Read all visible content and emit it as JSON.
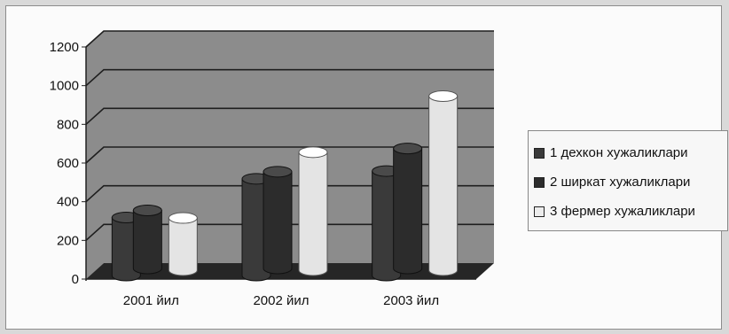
{
  "chart_data": {
    "type": "bar",
    "style": "3d-cylinder",
    "categories": [
      "2001 йил",
      "2002 йил",
      "2003 йил"
    ],
    "series": [
      {
        "name": "1 дехкон хужаликлари",
        "color": "#3a3a3a",
        "values": [
          300,
          500,
          540
        ]
      },
      {
        "name": "2 ширкат хужаликлари",
        "color": "#2c2c2c",
        "values": [
          300,
          500,
          620
        ]
      },
      {
        "name": "3 фермер хужаликлари",
        "color": "#ececec",
        "values": [
          270,
          610,
          900
        ]
      }
    ],
    "y_ticks": [
      "0",
      "200",
      "400",
      "600",
      "800",
      "1000",
      "1200"
    ],
    "ylim": [
      0,
      1200
    ],
    "grid": true,
    "legend_position": "right",
    "title": "",
    "xlabel": "",
    "ylabel": ""
  }
}
